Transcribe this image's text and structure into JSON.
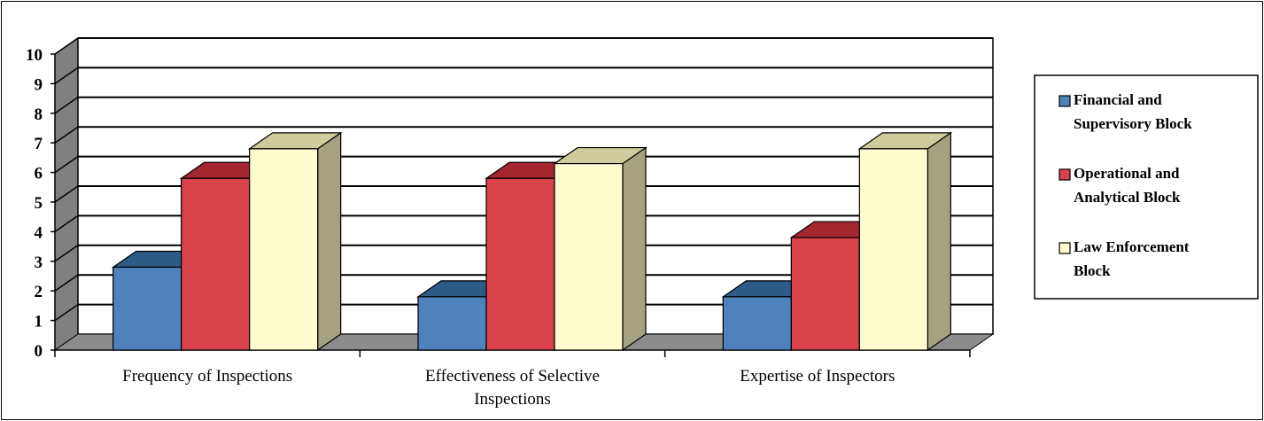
{
  "chart_data": {
    "type": "bar",
    "categories": [
      [
        "Frequency of Inspections"
      ],
      [
        "Effectiveness of Selective",
        "Inspections"
      ],
      [
        "Expertise of Inspectors"
      ]
    ],
    "series": [
      {
        "name": [
          "Financial and",
          "Supervisory Block"
        ],
        "values": [
          2.8,
          1.8,
          1.8
        ],
        "color": "#4F81BD",
        "top": "#2E5A87",
        "side": "#2F5C8F"
      },
      {
        "name": [
          "Operational and",
          "Analytical Block"
        ],
        "values": [
          5.8,
          5.8,
          3.8
        ],
        "color": "#D9434B",
        "top": "#A5272F",
        "side": "#A02D33"
      },
      {
        "name": [
          "Law Enforcement",
          "Block"
        ],
        "values": [
          6.8,
          6.3,
          6.8
        ],
        "color": "#FFFCCF",
        "top": "#CFCB9C",
        "side": "#A5A181"
      }
    ],
    "yticks": [
      "0",
      "1",
      "2",
      "3",
      "4",
      "5",
      "6",
      "7",
      "8",
      "9",
      "10"
    ],
    "ylim": [
      0,
      10
    ],
    "grid": true,
    "legend_position": "right"
  }
}
